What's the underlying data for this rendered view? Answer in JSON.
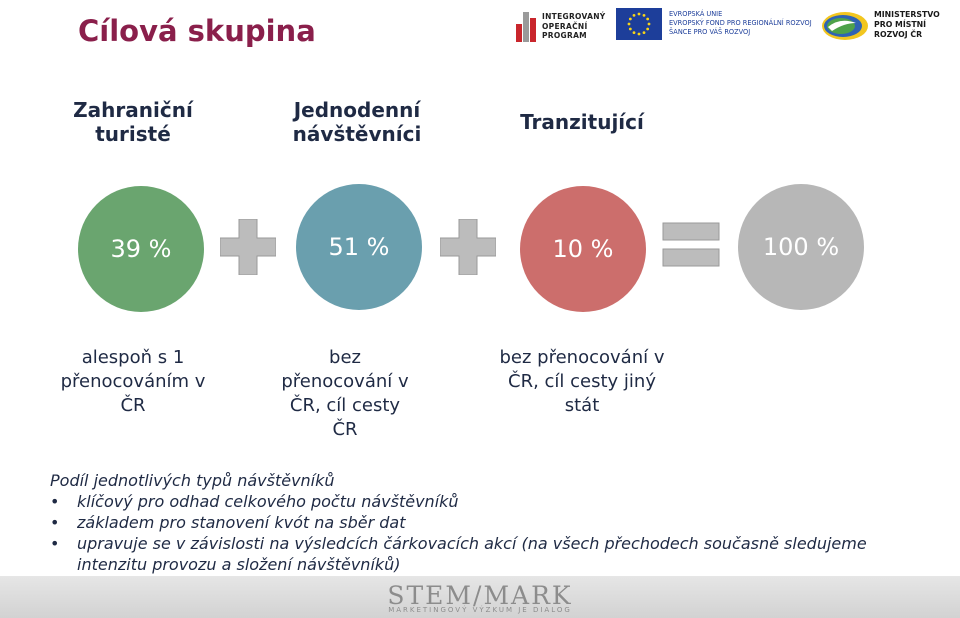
{
  "title": "Cílová skupina",
  "logos": {
    "iop": {
      "lines": [
        "INTEGROVANÝ",
        "OPERAČNÍ",
        "PROGRAM"
      ]
    },
    "eu": {
      "lines": [
        "EVROPSKÁ UNIE",
        "EVROPSKÝ FOND PRO REGIONÁLNÍ ROZVOJ",
        "ŠANCE PRO VÁŠ ROZVOJ"
      ]
    },
    "mmr": {
      "lines": [
        "MINISTERSTVO",
        "PRO MÍSTNÍ",
        "ROZVOJ ČR"
      ]
    }
  },
  "groups": [
    {
      "heading": "Zahraniční turisté",
      "share": "39 %",
      "color": "#6aa56f",
      "description": "alespoň s 1 přenocováním v ČR"
    },
    {
      "heading": "Jednodenní návštěvníci",
      "share": "51 %",
      "color": "#6a9fae",
      "description": "bez přenocování v ČR, cíl cesty ČR"
    },
    {
      "heading": "Tranzitující",
      "share": "10 %",
      "color": "#cc6e6c",
      "description": "bez přenocování v ČR, cíl cesty jiný stát"
    }
  ],
  "total": {
    "share": "100 %",
    "color": "#b7b7b7"
  },
  "colors": {
    "title": "#8a1f4b",
    "operator": "#bcbcbc",
    "text": "#1f2a44"
  },
  "notes": {
    "heading": "Podíl jednotlivých typů návštěvníků",
    "bullets": [
      "klíčový pro odhad celkového počtu návštěvníků",
      "základem pro stanovení kvót na sběr dat",
      "upravuje se v závislosti na výsledcích čárkovacích akcí (na všech přechodech současně sledujeme intenzitu provozu a složení návštěvníků)"
    ]
  },
  "footer": {
    "brand": "STEM/MARK",
    "tagline": "MARKETINGOVÝ VÝZKUM JE DIALOG"
  }
}
